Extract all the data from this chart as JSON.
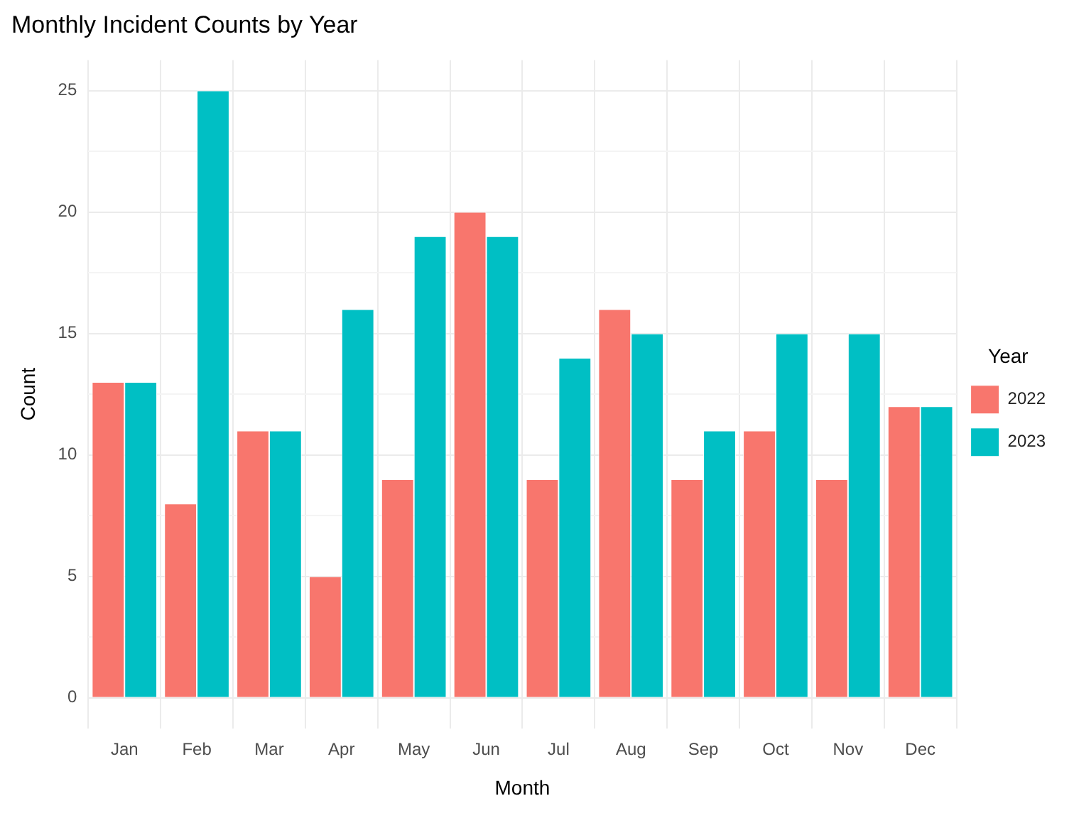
{
  "chart_data": {
    "type": "bar",
    "title": "Monthly Incident Counts by Year",
    "xlabel": "Month",
    "ylabel": "Count",
    "legend_title": "Year",
    "categories": [
      "Jan",
      "Feb",
      "Mar",
      "Apr",
      "May",
      "Jun",
      "Jul",
      "Aug",
      "Sep",
      "Oct",
      "Nov",
      "Dec"
    ],
    "series": [
      {
        "name": "2022",
        "color": "#f8766d",
        "values": [
          13,
          8,
          11,
          5,
          9,
          20,
          9,
          16,
          9,
          11,
          9,
          12
        ]
      },
      {
        "name": "2023",
        "color": "#00bfc4",
        "values": [
          13,
          25,
          11,
          16,
          19,
          19,
          14,
          15,
          11,
          15,
          15,
          12
        ]
      }
    ],
    "ylim": [
      -1.25,
      26.25
    ],
    "yticks": [
      0,
      {
        "value": 2.5,
        "label": null
      },
      5,
      {
        "value": 7.5,
        "label": null
      },
      10,
      {
        "value": 12.5,
        "label": null
      },
      15,
      {
        "value": 17.5,
        "label": null
      },
      20,
      {
        "value": 22.5,
        "label": null
      },
      25
    ],
    "grid": true,
    "legend": "right"
  }
}
